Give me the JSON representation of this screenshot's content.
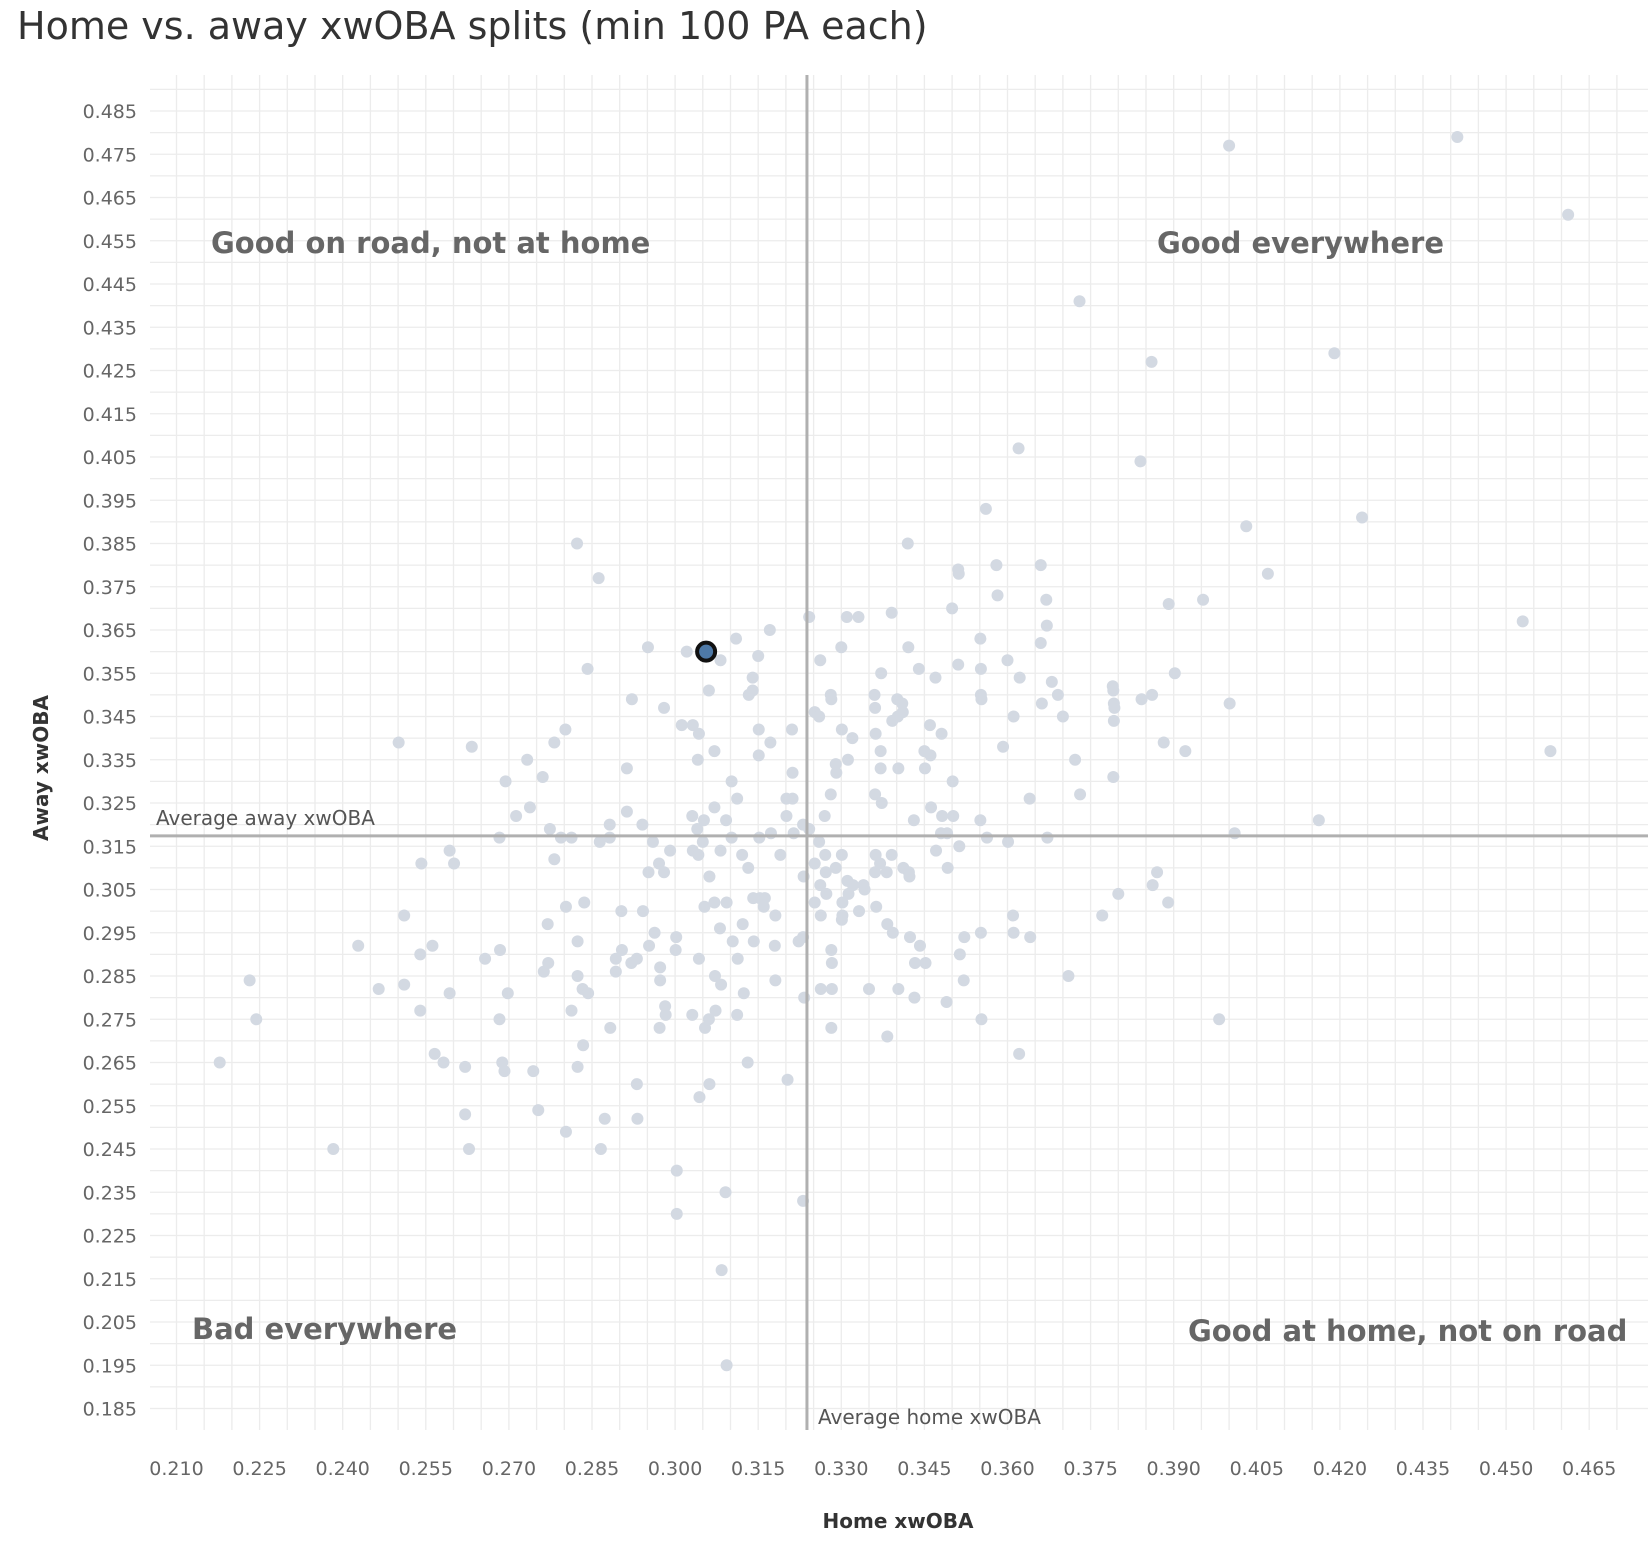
{
  "chart_data": {
    "type": "scatter",
    "title": "Home vs. away xwOBA splits (min 100 PA each)",
    "xlabel": "Home xwOBA",
    "ylabel": "Away xwOBA",
    "xlim": [
      0.205,
      0.47
    ],
    "ylim": [
      0.18,
      0.49
    ],
    "x_ticks": [
      "0.210",
      "0.225",
      "0.240",
      "0.255",
      "0.270",
      "0.285",
      "0.300",
      "0.315",
      "0.330",
      "0.345",
      "0.360",
      "0.375",
      "0.390",
      "0.405",
      "0.420",
      "0.435",
      "0.450",
      "0.465"
    ],
    "y_ticks": [
      "0.485",
      "0.475",
      "0.465",
      "0.455",
      "0.445",
      "0.435",
      "0.425",
      "0.415",
      "0.405",
      "0.395",
      "0.385",
      "0.375",
      "0.365",
      "0.355",
      "0.345",
      "0.335",
      "0.325",
      "0.315",
      "0.305",
      "0.295",
      "0.285",
      "0.275",
      "0.265",
      "0.255",
      "0.245",
      "0.235",
      "0.225",
      "0.215",
      "0.205",
      "0.195",
      "0.185"
    ],
    "grid": true,
    "quadrant_labels": {
      "top_left": "Good on road, not at home",
      "top_right": "Good everywhere",
      "bottom_left": "Bad everywhere",
      "bottom_right": "Good at home, not on road"
    },
    "reference_lines": {
      "avg_home": {
        "value": 0.3238,
        "label": "Average home xwOBA"
      },
      "avg_away": {
        "value": 0.3174,
        "label": "Average away xwOBA"
      }
    },
    "colors": {
      "point": "#d3d9e2",
      "highlight_fill": "#4e79a7",
      "highlight_stroke": "#111111",
      "reference_line": "#b0b0b0",
      "grid": "#ececec"
    },
    "highlight": {
      "x": 0.3056,
      "y": 0.36
    },
    "points": [
      [
        0.2178,
        0.265
      ],
      [
        0.2232,
        0.284
      ],
      [
        0.2244,
        0.275
      ],
      [
        0.2383,
        0.245
      ],
      [
        0.2428,
        0.292
      ],
      [
        0.2465,
        0.282
      ],
      [
        0.2501,
        0.339
      ],
      [
        0.2511,
        0.283
      ],
      [
        0.2511,
        0.299
      ],
      [
        0.2542,
        0.311
      ],
      [
        0.254,
        0.29
      ],
      [
        0.254,
        0.277
      ],
      [
        0.2562,
        0.292
      ],
      [
        0.2566,
        0.267
      ],
      [
        0.2582,
        0.265
      ],
      [
        0.2593,
        0.314
      ],
      [
        0.2593,
        0.281
      ],
      [
        0.2601,
        0.311
      ],
      [
        0.2621,
        0.264
      ],
      [
        0.2621,
        0.253
      ],
      [
        0.2628,
        0.245
      ],
      [
        0.2633,
        0.338
      ],
      [
        0.2657,
        0.289
      ],
      [
        0.2683,
        0.317
      ],
      [
        0.2683,
        0.275
      ],
      [
        0.2684,
        0.291
      ],
      [
        0.2688,
        0.265
      ],
      [
        0.2692,
        0.263
      ],
      [
        0.2694,
        0.33
      ],
      [
        0.2698,
        0.281
      ],
      [
        0.2713,
        0.322
      ],
      [
        0.2733,
        0.335
      ],
      [
        0.2738,
        0.324
      ],
      [
        0.2744,
        0.263
      ],
      [
        0.2753,
        0.254
      ],
      [
        0.2761,
        0.331
      ],
      [
        0.2763,
        0.286
      ],
      [
        0.277,
        0.297
      ],
      [
        0.2771,
        0.288
      ],
      [
        0.2774,
        0.319
      ],
      [
        0.2782,
        0.339
      ],
      [
        0.2782,
        0.312
      ],
      [
        0.2794,
        0.317
      ],
      [
        0.2802,
        0.342
      ],
      [
        0.2803,
        0.301
      ],
      [
        0.2803,
        0.249
      ],
      [
        0.2813,
        0.317
      ],
      [
        0.2813,
        0.277
      ],
      [
        0.2823,
        0.385
      ],
      [
        0.2824,
        0.293
      ],
      [
        0.2824,
        0.285
      ],
      [
        0.2824,
        0.264
      ],
      [
        0.2833,
        0.282
      ],
      [
        0.2834,
        0.269
      ],
      [
        0.2836,
        0.302
      ],
      [
        0.2842,
        0.356
      ],
      [
        0.2843,
        0.281
      ],
      [
        0.2862,
        0.377
      ],
      [
        0.2864,
        0.316
      ],
      [
        0.2866,
        0.245
      ],
      [
        0.2873,
        0.252
      ],
      [
        0.2882,
        0.32
      ],
      [
        0.2882,
        0.317
      ],
      [
        0.2883,
        0.273
      ],
      [
        0.2893,
        0.286
      ],
      [
        0.2893,
        0.289
      ],
      [
        0.2903,
        0.3
      ],
      [
        0.2904,
        0.291
      ],
      [
        0.2913,
        0.333
      ],
      [
        0.2913,
        0.323
      ],
      [
        0.2921,
        0.288
      ],
      [
        0.2922,
        0.349
      ],
      [
        0.2931,
        0.289
      ],
      [
        0.2931,
        0.26
      ],
      [
        0.2932,
        0.252
      ],
      [
        0.2941,
        0.32
      ],
      [
        0.2942,
        0.3
      ],
      [
        0.2951,
        0.361
      ],
      [
        0.2952,
        0.309
      ],
      [
        0.2953,
        0.292
      ],
      [
        0.296,
        0.316
      ],
      [
        0.2963,
        0.295
      ],
      [
        0.2971,
        0.311
      ],
      [
        0.2973,
        0.287
      ],
      [
        0.2973,
        0.284
      ],
      [
        0.2972,
        0.273
      ],
      [
        0.298,
        0.309
      ],
      [
        0.298,
        0.347
      ],
      [
        0.2982,
        0.278
      ],
      [
        0.2983,
        0.276
      ],
      [
        0.2991,
        0.314
      ],
      [
        0.3002,
        0.294
      ],
      [
        0.3001,
        0.291
      ],
      [
        0.3003,
        0.24
      ],
      [
        0.3003,
        0.23
      ],
      [
        0.3012,
        0.343
      ],
      [
        0.3021,
        0.36
      ],
      [
        0.3031,
        0.322
      ],
      [
        0.3032,
        0.314
      ],
      [
        0.3032,
        0.343
      ],
      [
        0.3031,
        0.276
      ],
      [
        0.304,
        0.319
      ],
      [
        0.3041,
        0.335
      ],
      [
        0.3042,
        0.313
      ],
      [
        0.3043,
        0.289
      ],
      [
        0.3043,
        0.341
      ],
      [
        0.3044,
        0.257
      ],
      [
        0.305,
        0.316
      ],
      [
        0.3052,
        0.321
      ],
      [
        0.3053,
        0.301
      ],
      [
        0.3054,
        0.273
      ],
      [
        0.3061,
        0.351
      ],
      [
        0.3062,
        0.308
      ],
      [
        0.3061,
        0.275
      ],
      [
        0.3062,
        0.26
      ],
      [
        0.3071,
        0.337
      ],
      [
        0.3071,
        0.324
      ],
      [
        0.3071,
        0.302
      ],
      [
        0.3072,
        0.285
      ],
      [
        0.3073,
        0.277
      ],
      [
        0.3082,
        0.358
      ],
      [
        0.3082,
        0.314
      ],
      [
        0.3081,
        0.296
      ],
      [
        0.3083,
        0.283
      ],
      [
        0.3084,
        0.217
      ],
      [
        0.3092,
        0.321
      ],
      [
        0.3093,
        0.302
      ],
      [
        0.3091,
        0.235
      ],
      [
        0.3093,
        0.195
      ],
      [
        0.3102,
        0.33
      ],
      [
        0.3102,
        0.317
      ],
      [
        0.3104,
        0.293
      ],
      [
        0.311,
        0.363
      ],
      [
        0.3112,
        0.326
      ],
      [
        0.3113,
        0.289
      ],
      [
        0.3112,
        0.276
      ],
      [
        0.3121,
        0.313
      ],
      [
        0.3122,
        0.297
      ],
      [
        0.3124,
        0.281
      ],
      [
        0.3133,
        0.35
      ],
      [
        0.3132,
        0.31
      ],
      [
        0.3131,
        0.265
      ],
      [
        0.314,
        0.354
      ],
      [
        0.314,
        0.351
      ],
      [
        0.3141,
        0.303
      ],
      [
        0.3142,
        0.293
      ],
      [
        0.315,
        0.359
      ],
      [
        0.3151,
        0.342
      ],
      [
        0.3151,
        0.336
      ],
      [
        0.3152,
        0.317
      ],
      [
        0.3153,
        0.303
      ],
      [
        0.316,
        0.301
      ],
      [
        0.3162,
        0.303
      ],
      [
        0.3171,
        0.365
      ],
      [
        0.3172,
        0.339
      ],
      [
        0.3173,
        0.318
      ],
      [
        0.3181,
        0.299
      ],
      [
        0.3181,
        0.284
      ],
      [
        0.318,
        0.292
      ],
      [
        0.319,
        0.313
      ],
      [
        0.3201,
        0.322
      ],
      [
        0.3201,
        0.326
      ],
      [
        0.3203,
        0.261
      ],
      [
        0.3211,
        0.342
      ],
      [
        0.3212,
        0.332
      ],
      [
        0.3212,
        0.326
      ],
      [
        0.3214,
        0.318
      ],
      [
        0.3223,
        0.293
      ],
      [
        0.3231,
        0.32
      ],
      [
        0.3232,
        0.308
      ],
      [
        0.3231,
        0.294
      ],
      [
        0.3233,
        0.28
      ],
      [
        0.3231,
        0.233
      ],
      [
        0.3242,
        0.368
      ],
      [
        0.3242,
        0.319
      ],
      [
        0.3252,
        0.346
      ],
      [
        0.3252,
        0.311
      ],
      [
        0.3252,
        0.302
      ],
      [
        0.326,
        0.345
      ],
      [
        0.3262,
        0.358
      ],
      [
        0.326,
        0.316
      ],
      [
        0.3262,
        0.306
      ],
      [
        0.3263,
        0.299
      ],
      [
        0.3263,
        0.282
      ],
      [
        0.327,
        0.322
      ],
      [
        0.3272,
        0.309
      ],
      [
        0.3271,
        0.313
      ],
      [
        0.3273,
        0.304
      ],
      [
        0.3281,
        0.35
      ],
      [
        0.3282,
        0.349
      ],
      [
        0.3281,
        0.327
      ],
      [
        0.3282,
        0.291
      ],
      [
        0.3283,
        0.288
      ],
      [
        0.3283,
        0.282
      ],
      [
        0.3282,
        0.273
      ],
      [
        0.329,
        0.334
      ],
      [
        0.3291,
        0.332
      ],
      [
        0.329,
        0.31
      ],
      [
        0.33,
        0.361
      ],
      [
        0.3301,
        0.342
      ],
      [
        0.3301,
        0.313
      ],
      [
        0.3302,
        0.302
      ],
      [
        0.3302,
        0.299
      ],
      [
        0.3301,
        0.298
      ],
      [
        0.331,
        0.368
      ],
      [
        0.3312,
        0.335
      ],
      [
        0.3311,
        0.307
      ],
      [
        0.3313,
        0.304
      ],
      [
        0.332,
        0.34
      ],
      [
        0.3321,
        0.306
      ],
      [
        0.3331,
        0.368
      ],
      [
        0.3332,
        0.3
      ],
      [
        0.3342,
        0.305
      ],
      [
        0.334,
        0.306
      ],
      [
        0.335,
        0.282
      ],
      [
        0.336,
        0.35
      ],
      [
        0.3361,
        0.347
      ],
      [
        0.3362,
        0.341
      ],
      [
        0.3361,
        0.327
      ],
      [
        0.3362,
        0.313
      ],
      [
        0.3361,
        0.309
      ],
      [
        0.3363,
        0.301
      ],
      [
        0.3371,
        0.337
      ],
      [
        0.3372,
        0.355
      ],
      [
        0.3371,
        0.333
      ],
      [
        0.3373,
        0.325
      ],
      [
        0.337,
        0.311
      ],
      [
        0.3382,
        0.309
      ],
      [
        0.3383,
        0.297
      ],
      [
        0.3383,
        0.271
      ],
      [
        0.3391,
        0.369
      ],
      [
        0.3392,
        0.344
      ],
      [
        0.3391,
        0.313
      ],
      [
        0.3393,
        0.295
      ],
      [
        0.3401,
        0.349
      ],
      [
        0.3402,
        0.345
      ],
      [
        0.3403,
        0.333
      ],
      [
        0.3403,
        0.282
      ],
      [
        0.341,
        0.348
      ],
      [
        0.3411,
        0.346
      ],
      [
        0.3412,
        0.31
      ],
      [
        0.342,
        0.385
      ],
      [
        0.3421,
        0.361
      ],
      [
        0.3422,
        0.309
      ],
      [
        0.3423,
        0.308
      ],
      [
        0.3424,
        0.294
      ],
      [
        0.3431,
        0.321
      ],
      [
        0.3433,
        0.288
      ],
      [
        0.3432,
        0.28
      ],
      [
        0.344,
        0.356
      ],
      [
        0.3442,
        0.292
      ],
      [
        0.345,
        0.337
      ],
      [
        0.3451,
        0.333
      ],
      [
        0.3452,
        0.288
      ],
      [
        0.346,
        0.343
      ],
      [
        0.3461,
        0.336
      ],
      [
        0.3462,
        0.324
      ],
      [
        0.347,
        0.354
      ],
      [
        0.3471,
        0.314
      ],
      [
        0.3481,
        0.341
      ],
      [
        0.3482,
        0.322
      ],
      [
        0.348,
        0.318
      ],
      [
        0.3491,
        0.318
      ],
      [
        0.3492,
        0.31
      ],
      [
        0.349,
        0.279
      ],
      [
        0.35,
        0.37
      ],
      [
        0.3501,
        0.33
      ],
      [
        0.3502,
        0.322
      ],
      [
        0.3511,
        0.379
      ],
      [
        0.3512,
        0.378
      ],
      [
        0.3511,
        0.357
      ],
      [
        0.3513,
        0.315
      ],
      [
        0.3514,
        0.29
      ],
      [
        0.3522,
        0.294
      ],
      [
        0.3521,
        0.284
      ],
      [
        0.3551,
        0.363
      ],
      [
        0.3552,
        0.356
      ],
      [
        0.3552,
        0.35
      ],
      [
        0.3553,
        0.349
      ],
      [
        0.3551,
        0.321
      ],
      [
        0.3552,
        0.295
      ],
      [
        0.3553,
        0.275
      ],
      [
        0.3561,
        0.393
      ],
      [
        0.3563,
        0.317
      ],
      [
        0.358,
        0.38
      ],
      [
        0.3582,
        0.373
      ],
      [
        0.3592,
        0.338
      ],
      [
        0.36,
        0.358
      ],
      [
        0.3601,
        0.316
      ],
      [
        0.3611,
        0.345
      ],
      [
        0.361,
        0.299
      ],
      [
        0.3611,
        0.295
      ],
      [
        0.362,
        0.407
      ],
      [
        0.3622,
        0.354
      ],
      [
        0.3621,
        0.267
      ],
      [
        0.364,
        0.326
      ],
      [
        0.3641,
        0.294
      ],
      [
        0.366,
        0.38
      ],
      [
        0.366,
        0.362
      ],
      [
        0.3662,
        0.348
      ],
      [
        0.367,
        0.372
      ],
      [
        0.3671,
        0.366
      ],
      [
        0.3672,
        0.317
      ],
      [
        0.368,
        0.353
      ],
      [
        0.3691,
        0.35
      ],
      [
        0.37,
        0.345
      ],
      [
        0.371,
        0.285
      ],
      [
        0.3722,
        0.335
      ],
      [
        0.373,
        0.441
      ],
      [
        0.3731,
        0.327
      ],
      [
        0.3771,
        0.299
      ],
      [
        0.379,
        0.352
      ],
      [
        0.3791,
        0.351
      ],
      [
        0.3792,
        0.348
      ],
      [
        0.3793,
        0.347
      ],
      [
        0.3792,
        0.344
      ],
      [
        0.3791,
        0.331
      ],
      [
        0.38,
        0.304
      ],
      [
        0.384,
        0.404
      ],
      [
        0.3842,
        0.349
      ],
      [
        0.386,
        0.427
      ],
      [
        0.3861,
        0.35
      ],
      [
        0.3862,
        0.306
      ],
      [
        0.387,
        0.309
      ],
      [
        0.3882,
        0.339
      ],
      [
        0.3891,
        0.371
      ],
      [
        0.389,
        0.302
      ],
      [
        0.3902,
        0.355
      ],
      [
        0.3921,
        0.337
      ],
      [
        0.3953,
        0.372
      ],
      [
        0.3982,
        0.275
      ],
      [
        0.4,
        0.477
      ],
      [
        0.4001,
        0.348
      ],
      [
        0.401,
        0.318
      ],
      [
        0.4031,
        0.389
      ],
      [
        0.407,
        0.378
      ],
      [
        0.4162,
        0.321
      ],
      [
        0.419,
        0.429
      ],
      [
        0.424,
        0.391
      ],
      [
        0.4412,
        0.479
      ],
      [
        0.453,
        0.367
      ],
      [
        0.458,
        0.337
      ],
      [
        0.4612,
        0.461
      ]
    ]
  }
}
